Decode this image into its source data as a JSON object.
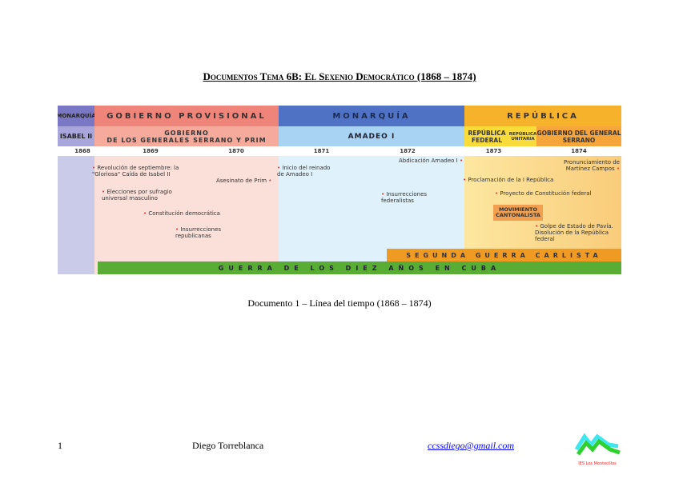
{
  "title": "Documentos Tema 6B: El Sexenio Democrático (1868 – 1874)",
  "timeline": {
    "periods": [
      "MONARQUÍA",
      "GOBIERNO PROVISIONAL",
      "MONARQUÍA",
      "REPÚBLICA"
    ],
    "governments": [
      "ISABEL II",
      "GOBIERNO",
      "DE LOS GENERALES SERRANO Y PRIM",
      "AMADEO I",
      "REPÚBLICA FEDERAL",
      "REPÚBLICA UNITARIA",
      "GOBIERNO DEL GENERAL SERRANO"
    ],
    "years": [
      "1868",
      "1869",
      "1870",
      "1871",
      "1872",
      "1873",
      "1874"
    ],
    "events": [
      "Revolución de septiembre: la \"Gloriosa\" Caída de Isabel II",
      "Asesinato de Prim",
      "Elecciones por sufragio universal masculino",
      "Constitución democrática",
      "Insurrecciones republicanas",
      "Inicio del reinado de Amadeo I",
      "Abdicación Amadeo I",
      "Insurrecciones federalistas",
      "Proclamación de la I República",
      "Proyecto de Constitución federal",
      "MOVIMIENTO CANTONALISTA",
      "Golpe de Estado de Pavía. Disolución de la República federal",
      "Pronunciamiento de Martínez Campos"
    ],
    "wars": [
      "SEGUNDA GUERRA CARLISTA",
      "GUERRA DE LOS DIEZ AÑOS EN CUBA"
    ],
    "colors": {
      "monarquia": "#4f72c4",
      "provisional": "#ef857a",
      "republica": "#f5b22a",
      "carlista": "#ef9a22",
      "cuba": "#5aad34"
    }
  },
  "caption": "Documento 1 – Línea del tiempo (1868 – 1874)",
  "footer": {
    "page": "1",
    "author": "Diego Torreblanca",
    "email": "ccssdiego@gmail.com",
    "logo_text": "IES Los Montecillos"
  }
}
